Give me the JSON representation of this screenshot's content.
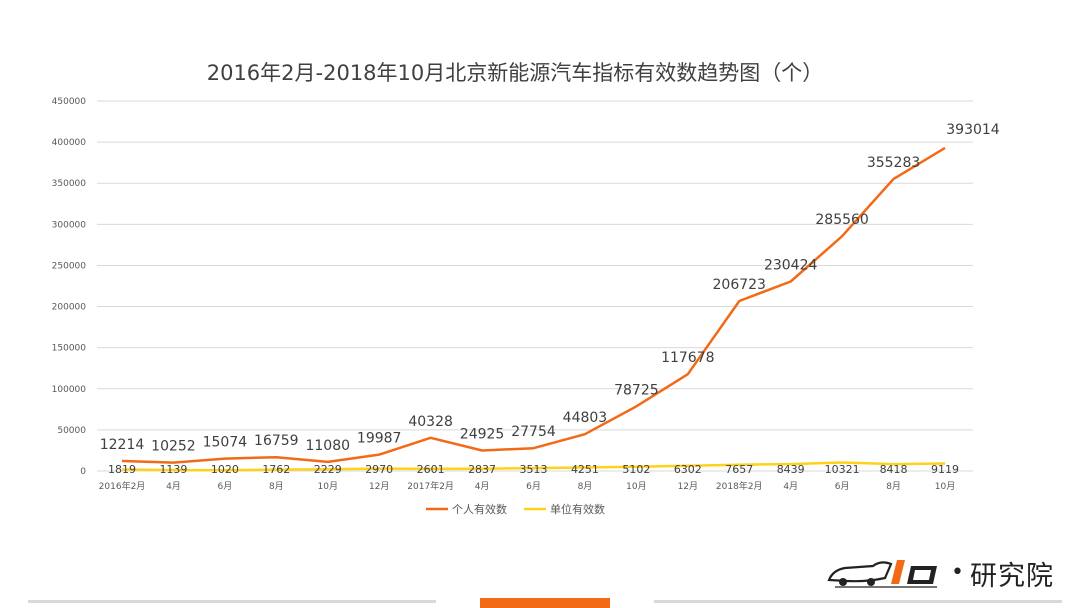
{
  "chart_data": {
    "type": "line",
    "title": "2016年2月-2018年10月北京新能源汽车指标有效数趋势图（个）",
    "categories": [
      "2016年2月",
      "4月",
      "6月",
      "8月",
      "10月",
      "12月",
      "2017年2月",
      "4月",
      "6月",
      "8月",
      "10月",
      "12月",
      "2018年2月",
      "4月",
      "6月",
      "8月",
      "10月"
    ],
    "series": [
      {
        "name": "个人有效数",
        "color": "#f26a16",
        "values": [
          12214,
          10252,
          15074,
          16759,
          11080,
          19987,
          40328,
          24925,
          27754,
          44803,
          78725,
          117678,
          206723,
          230424,
          285560,
          355283,
          393014
        ]
      },
      {
        "name": "单位有效数",
        "color": "#ffd21a",
        "values": [
          1819,
          1139,
          1020,
          1762,
          2229,
          2970,
          2601,
          2837,
          3513,
          4251,
          5102,
          6302,
          7657,
          8439,
          10321,
          8418,
          9119
        ]
      }
    ],
    "ylim": [
      0,
      450000
    ],
    "yticks": [
      0,
      50000,
      100000,
      150000,
      200000,
      250000,
      300000,
      350000,
      400000,
      450000
    ],
    "grid": true,
    "legend_position": "bottom"
  },
  "colors": {
    "grid": "#d9d9d9",
    "axis_text": "#595959",
    "title": "#404040",
    "footer_accent": "#f26a16"
  },
  "logo": {
    "dot": "•",
    "text": "研究院",
    "icon": "car-1-electric-logo-icon"
  }
}
